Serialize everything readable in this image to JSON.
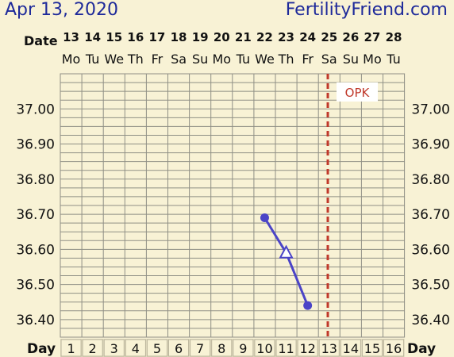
{
  "header": {
    "date": "Apr 13, 2020",
    "site": "FertilityFriend.com"
  },
  "labels": {
    "date_row": "Date",
    "day_row_left": "Day",
    "day_row_right": "Day",
    "marker": "OPK"
  },
  "colors": {
    "background": "#f8f2d5",
    "grid": "#8f8f85",
    "line": "#4b44c7",
    "opk": "#c0392b",
    "header": "#1e2a9a",
    "day_row_bg": "#e2dcc0"
  },
  "chart_data": {
    "type": "line",
    "dates": [
      "13",
      "14",
      "15",
      "16",
      "17",
      "18",
      "19",
      "20",
      "21",
      "22",
      "23",
      "24",
      "25",
      "26",
      "27",
      "28"
    ],
    "weekdays": [
      "Mo",
      "Tu",
      "We",
      "Th",
      "Fr",
      "Sa",
      "Su",
      "Mo",
      "Tu",
      "We",
      "Th",
      "Fr",
      "Sa",
      "Su",
      "Mo",
      "Tu"
    ],
    "days": [
      "1",
      "2",
      "3",
      "4",
      "5",
      "6",
      "7",
      "8",
      "9",
      "10",
      "11",
      "12",
      "13",
      "14",
      "15",
      "16"
    ],
    "y_ticks": [
      "37.00",
      "36.90",
      "36.80",
      "36.70",
      "36.60",
      "36.50",
      "36.40"
    ],
    "ylim": [
      36.35,
      37.1
    ],
    "series": [
      {
        "points": [
          {
            "day": 10,
            "temp": 36.69,
            "marker": "circle"
          },
          {
            "day": 11,
            "temp": 36.59,
            "marker": "triangle-open"
          },
          {
            "day": 12,
            "temp": 36.44,
            "marker": "circle"
          }
        ]
      }
    ],
    "opk_day": 13
  }
}
